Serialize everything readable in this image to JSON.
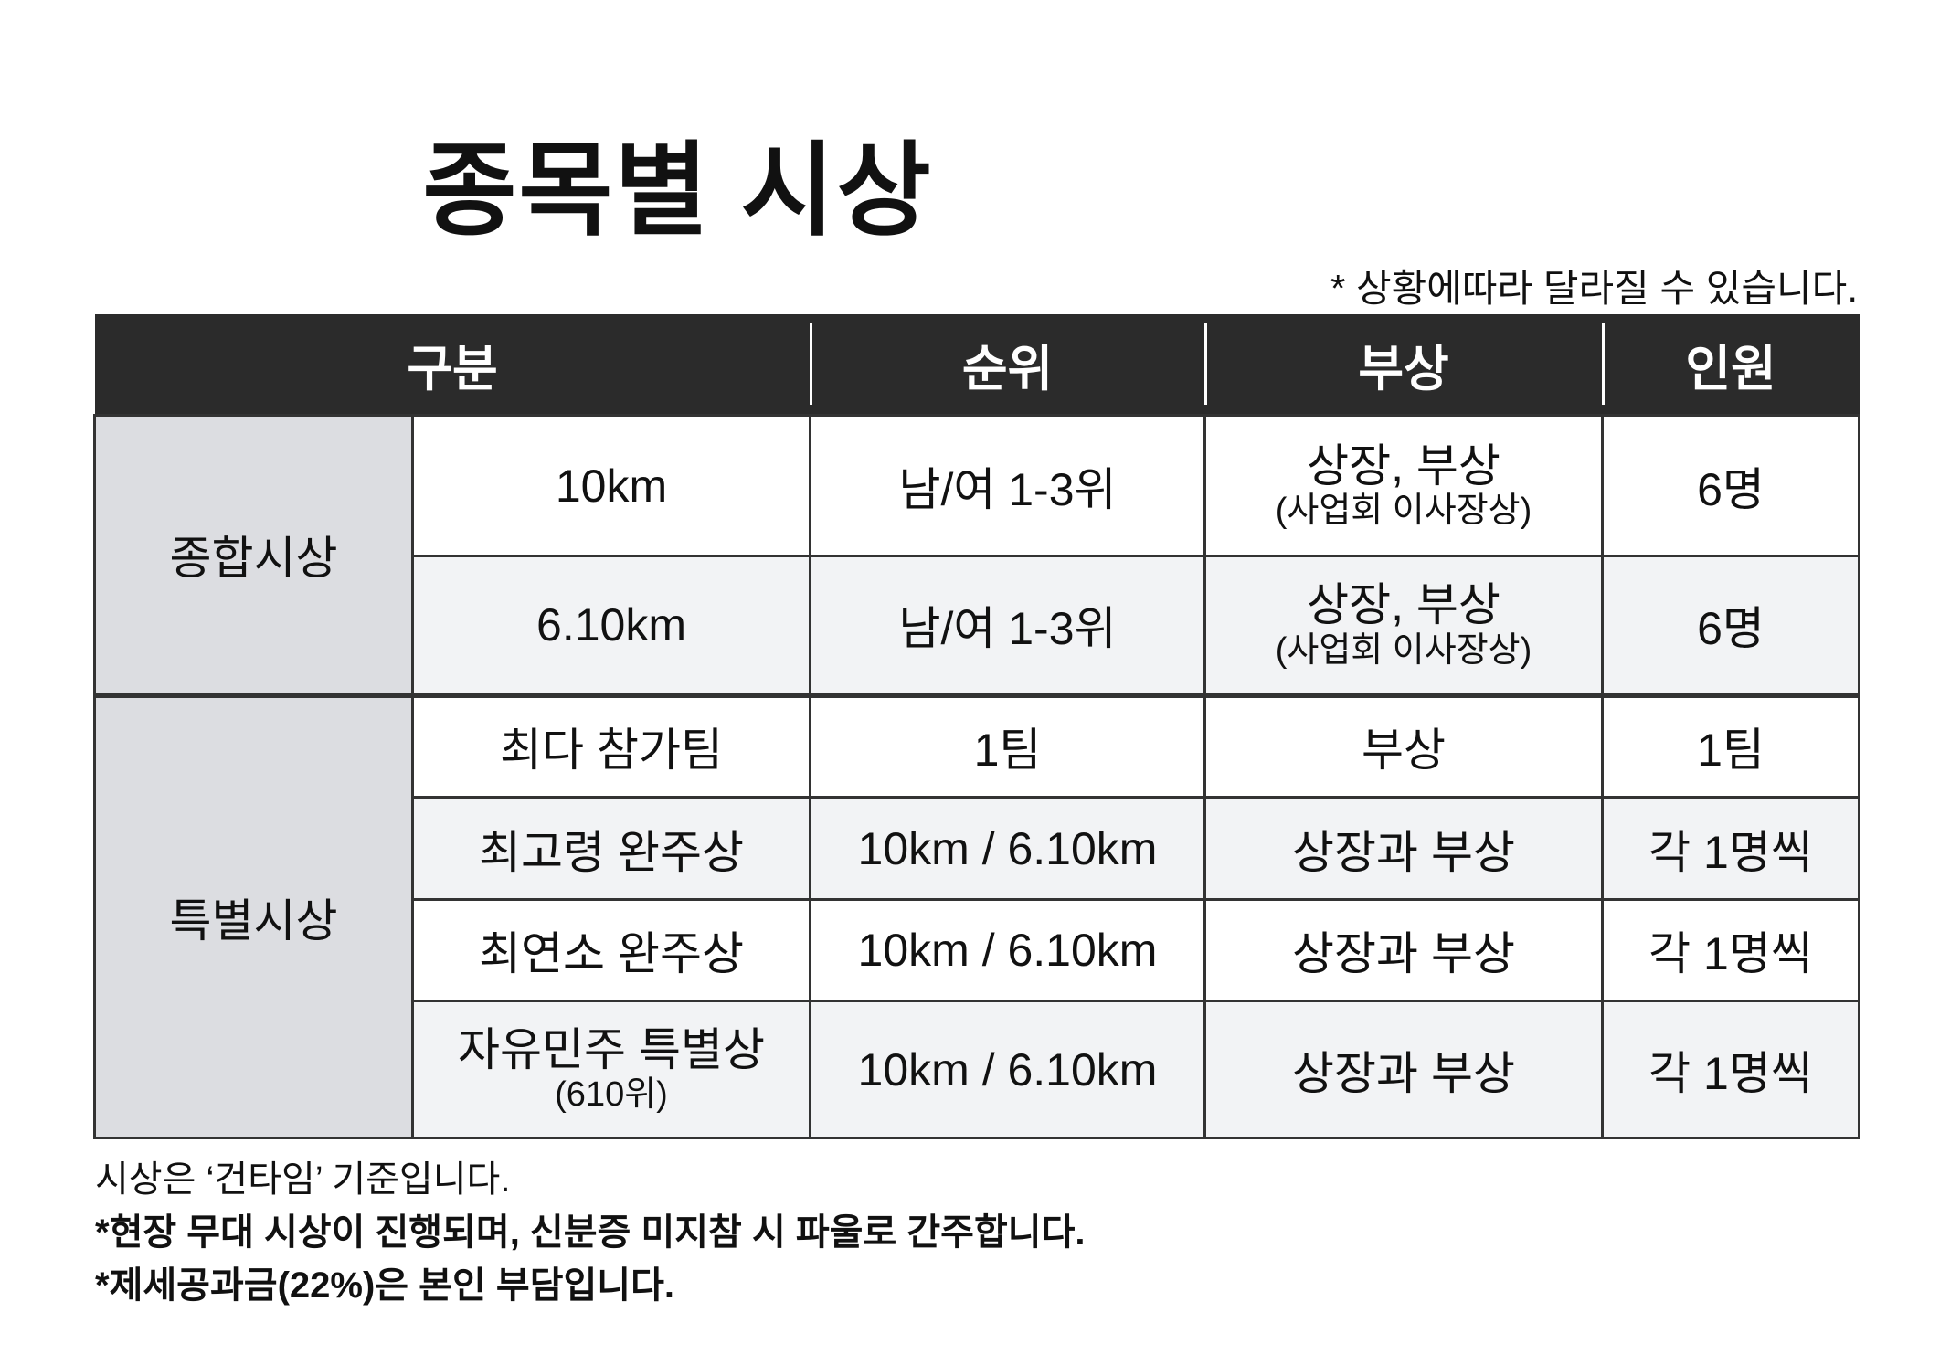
{
  "title": "종목별 시상",
  "note": "* 상황에따라 달라질 수 있습니다.",
  "table": {
    "headers": [
      "구분",
      "순위",
      "부상",
      "인원"
    ],
    "groups": [
      {
        "label": "종합시상",
        "rows": [
          {
            "category": "10km",
            "rank": "남/여 1-3위",
            "prize": "상장, 부상",
            "prize_sub": "(사업회 이사장상)",
            "count": "6명"
          },
          {
            "category": "6.10km",
            "rank": "남/여 1-3위",
            "prize": "상장, 부상",
            "prize_sub": "(사업회 이사장상)",
            "count": "6명"
          }
        ]
      },
      {
        "label": "특별시상",
        "rows": [
          {
            "category": "최다 참가팀",
            "rank": "1팀",
            "prize": "부상",
            "count": "1팀"
          },
          {
            "category": "최고령 완주상",
            "rank": "10km / 6.10km",
            "prize": "상장과 부상",
            "count": "각 1명씩"
          },
          {
            "category": "최연소 완주상",
            "rank": "10km / 6.10km",
            "prize": "상장과 부상",
            "count": "각 1명씩"
          },
          {
            "category": "자유민주 특별상",
            "category_sub": "(610위)",
            "rank": "10km / 6.10km",
            "prize": "상장과 부상",
            "count": "각 1명씩"
          }
        ]
      }
    ]
  },
  "footer": [
    "시상은 ‘건타임’ 기준입니다.",
    "*현장 무대 시상이 진행되며, 신분증 미지참 시 파울로 간주합니다.",
    "*제세공과금(22%)은 본인 부담입니다."
  ],
  "colors": {
    "header_bg": "#2b2b2b",
    "group_bg": "#dcdde1",
    "alt_row_bg": "#f2f3f5"
  }
}
